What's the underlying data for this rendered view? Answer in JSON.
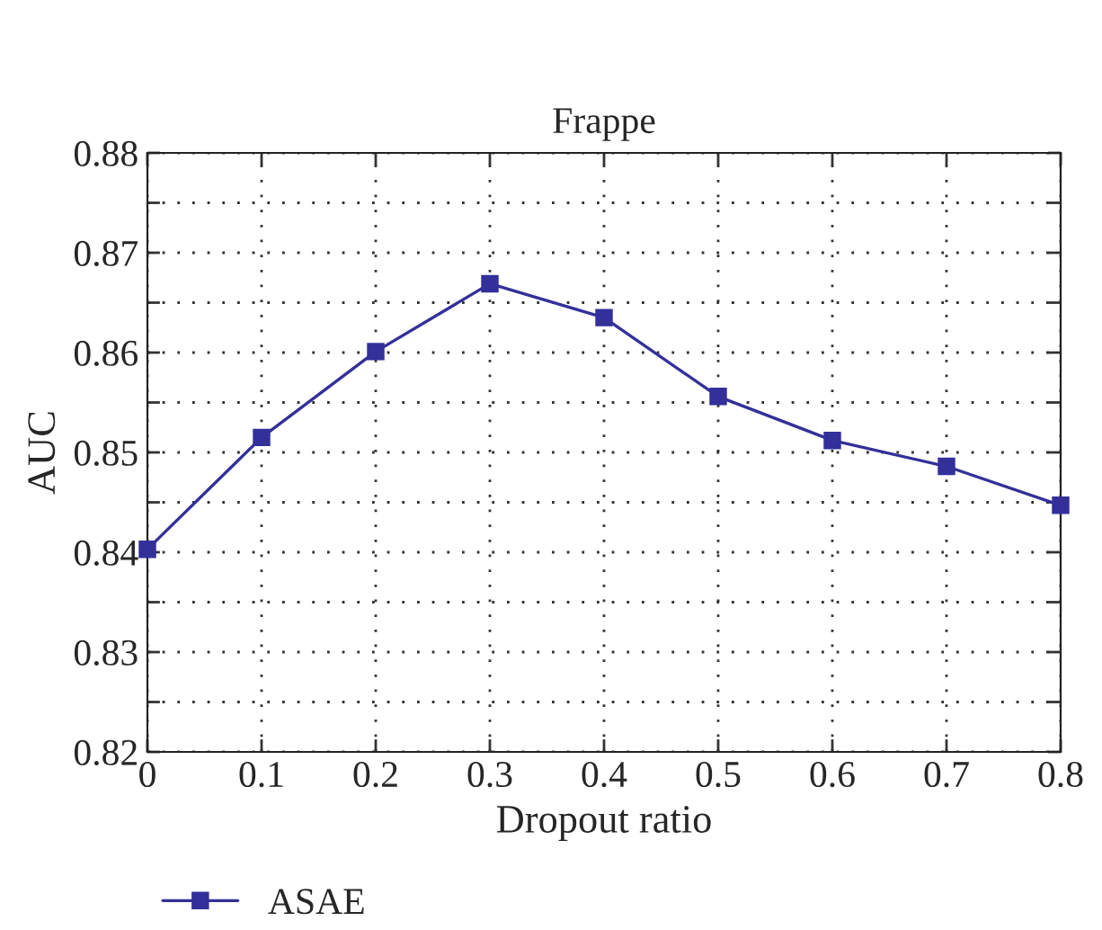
{
  "chart_data": {
    "type": "line",
    "title": "Frappe",
    "xlabel": "Dropout ratio",
    "ylabel": "AUC",
    "x": [
      0,
      0.1,
      0.2,
      0.3,
      0.4,
      0.5,
      0.6,
      0.7,
      0.8
    ],
    "series": [
      {
        "name": "ASAE",
        "color": "#33309a",
        "values": [
          0.8403,
          0.8515,
          0.8601,
          0.8669,
          0.8635,
          0.8556,
          0.8512,
          0.8486,
          0.8447
        ]
      }
    ],
    "xlim": [
      0,
      0.8
    ],
    "xticks": [
      0,
      0.1,
      0.2,
      0.3,
      0.4,
      0.5,
      0.6,
      0.7,
      0.8
    ],
    "ylim": [
      0.82,
      0.88
    ],
    "yticks": [
      0.82,
      {
        "value": 0.825,
        "label": null
      },
      0.83,
      {
        "value": 0.835,
        "label": null
      },
      0.84,
      {
        "value": 0.845,
        "label": null
      },
      0.85,
      {
        "value": 0.855,
        "label": null
      },
      0.86,
      {
        "value": 0.865,
        "label": null
      },
      0.87,
      {
        "value": 0.875,
        "label": null
      },
      0.88
    ],
    "grid": true,
    "legend": "bottom left",
    "marker": "square",
    "line_style": "solid"
  }
}
